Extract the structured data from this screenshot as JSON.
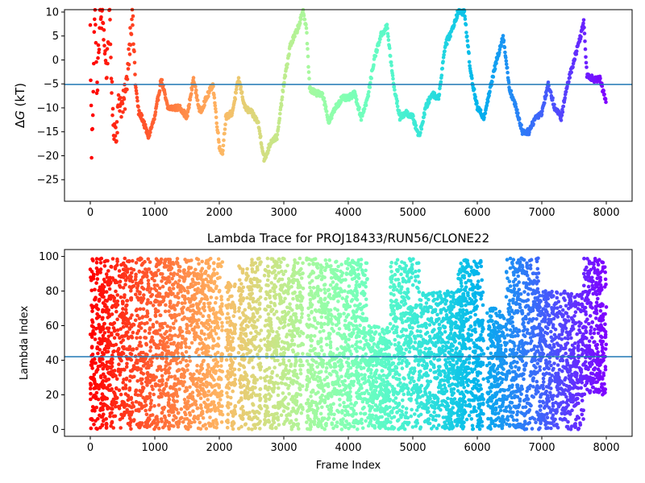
{
  "chart_data": [
    {
      "type": "scatter",
      "title": "",
      "xlabel": "",
      "ylabel_prefix": "Δ",
      "ylabel_symbol": "G",
      "ylabel_suffix": " (kT)",
      "xlim": [
        -400,
        8400
      ],
      "ylim": [
        -29.5,
        10.5
      ],
      "xticks": [
        0,
        1000,
        2000,
        3000,
        4000,
        5000,
        6000,
        7000,
        8000
      ],
      "xtick_labels": [
        "0",
        "1000",
        "2000",
        "3000",
        "4000",
        "5000",
        "6000",
        "7000",
        "8000"
      ],
      "yticks": [
        -25,
        -20,
        -15,
        -10,
        -5,
        0,
        5,
        10
      ],
      "ytick_labels": [
        "−25",
        "−20",
        "−15",
        "−10",
        "−5",
        "0",
        "5",
        "10"
      ],
      "hline": -5.1,
      "hline_color": "#1f77b4",
      "colormap": "rainbow",
      "grid": false,
      "x_range_frames": [
        0,
        8000
      ],
      "series": [
        {
          "x": [
            0,
            20,
            40,
            60,
            80,
            100,
            150,
            200,
            250,
            300,
            350,
            400,
            450,
            500,
            550,
            600,
            650,
            700,
            750,
            800,
            900,
            1000,
            1100,
            1200,
            1300,
            1400,
            1500,
            1600,
            1700,
            1800,
            1900,
            2000,
            2050,
            2100,
            2200,
            2300,
            2400,
            2500,
            2600,
            2700,
            2800,
            2900,
            3000,
            3100,
            3200,
            3300,
            3350,
            3400,
            3500,
            3600,
            3700,
            3800,
            3900,
            4000,
            4100,
            4200,
            4300,
            4400,
            4500,
            4600,
            4700,
            4800,
            4900,
            5000,
            5100,
            5200,
            5300,
            5400,
            5500,
            5600,
            5700,
            5800,
            5900,
            6000,
            6100,
            6200,
            6300,
            6400,
            6500,
            6600,
            6700,
            6800,
            6900,
            7000,
            7100,
            7200,
            7300,
            7400,
            7500,
            7600,
            7650,
            7700,
            7800,
            7900,
            8000
          ],
          "y": [
            6,
            -19.5,
            -10,
            6,
            10,
            -8,
            9,
            8,
            -3,
            9,
            -13,
            -15,
            -8,
            -10,
            -7,
            2,
            10,
            -5,
            -11,
            -12,
            -16,
            -12,
            -4,
            -10,
            -10,
            -10,
            -12,
            -4,
            -11,
            -8,
            -5,
            -18,
            -19.5,
            -12,
            -11,
            -4,
            -10,
            -11,
            -13,
            -21,
            -17,
            -16,
            -5,
            3,
            6,
            10,
            7,
            -6,
            -7,
            -7,
            -13,
            -10,
            -8,
            -8,
            -7,
            -12,
            -8,
            0,
            5,
            7,
            -5,
            -12,
            -11,
            -12,
            -16,
            -10,
            -7,
            -8,
            3,
            6,
            10,
            10,
            -3,
            -10,
            -12,
            -6,
            0,
            5,
            -6,
            -10,
            -15,
            -15,
            -12,
            -11,
            -5,
            -10,
            -12,
            -5,
            0,
            5,
            8,
            -3,
            -4,
            -4,
            -9
          ]
        }
      ]
    },
    {
      "type": "scatter",
      "title": "Lambda Trace for PROJ18433/RUN56/CLONE22",
      "xlabel": "Frame Index",
      "ylabel": "Lambda Index",
      "xlim": [
        -400,
        8400
      ],
      "ylim": [
        -4,
        104
      ],
      "xticks": [
        0,
        1000,
        2000,
        3000,
        4000,
        5000,
        6000,
        7000,
        8000
      ],
      "xtick_labels": [
        "0",
        "1000",
        "2000",
        "3000",
        "4000",
        "5000",
        "6000",
        "7000",
        "8000"
      ],
      "yticks": [
        0,
        20,
        40,
        60,
        80,
        100
      ],
      "ytick_labels": [
        "0",
        "20",
        "40",
        "60",
        "80",
        "100"
      ],
      "hline": 42,
      "hline_color": "#1f77b4",
      "colormap": "rainbow",
      "grid": false,
      "series": [
        {
          "clusters": [
            {
              "x": [
                0,
                120
              ],
              "y": [
                0,
                99
              ]
            },
            {
              "x": [
                120,
                680
              ],
              "y": [
                0,
                99
              ]
            },
            {
              "x": [
                700,
                2050
              ],
              "y": [
                0,
                99
              ]
            },
            {
              "x": [
                2100,
                2250
              ],
              "y": [
                0,
                85
              ]
            },
            {
              "x": [
                2300,
                2650
              ],
              "y": [
                0,
                99
              ]
            },
            {
              "x": [
                2700,
                3300
              ],
              "y": [
                0,
                99
              ]
            },
            {
              "x": [
                3350,
                4300
              ],
              "y": [
                0,
                99
              ]
            },
            {
              "x": [
                4300,
                4650
              ],
              "y": [
                0,
                60
              ]
            },
            {
              "x": [
                4650,
                5100
              ],
              "y": [
                0,
                99
              ]
            },
            {
              "x": [
                5100,
                5800
              ],
              "y": [
                0,
                80
              ]
            },
            {
              "x": [
                5700,
                6100
              ],
              "y": [
                0,
                99
              ]
            },
            {
              "x": [
                6150,
                6450
              ],
              "y": [
                0,
                70
              ]
            },
            {
              "x": [
                6450,
                6950
              ],
              "y": [
                0,
                99
              ]
            },
            {
              "x": [
                6950,
                7650
              ],
              "y": [
                0,
                80
              ]
            },
            {
              "x": [
                7650,
                8000
              ],
              "y": [
                20,
                99
              ]
            }
          ]
        }
      ]
    }
  ]
}
